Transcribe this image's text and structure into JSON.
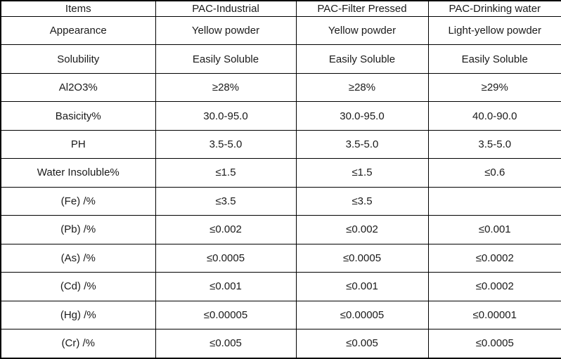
{
  "table": {
    "header": [
      "Items",
      "PAC-Industrial",
      "PAC-Filter Pressed",
      "PAC-Drinking water"
    ],
    "rows": [
      [
        "Appearance",
        "Yellow powder",
        "Yellow powder",
        "Light-yellow powder"
      ],
      [
        "Solubility",
        "Easily Soluble",
        "Easily Soluble",
        "Easily Soluble"
      ],
      [
        "Al2O3%",
        "≥28%",
        "≥28%",
        "≥29%"
      ],
      [
        "Basicity%",
        "30.0-95.0",
        "30.0-95.0",
        "40.0-90.0"
      ],
      [
        "PH",
        "3.5-5.0",
        "3.5-5.0",
        "3.5-5.0"
      ],
      [
        "Water Insoluble%",
        "≤1.5",
        "≤1.5",
        "≤0.6"
      ],
      [
        "(Fe) /%",
        "≤3.5",
        "≤3.5",
        ""
      ],
      [
        "(Pb) /%",
        "≤0.002",
        "≤0.002",
        "≤0.001"
      ],
      [
        "(As) /%",
        "≤0.0005",
        "≤0.0005",
        "≤0.0002"
      ],
      [
        "(Cd) /%",
        "≤0.001",
        "≤0.001",
        "≤0.0002"
      ],
      [
        "(Hg) /%",
        "≤0.00005",
        "≤0.00005",
        "≤0.00001"
      ],
      [
        "(Cr) /%",
        "≤0.005",
        "≤0.005",
        "≤0.0005"
      ]
    ],
    "colors": {
      "border": "#000000",
      "text": "#1a1a1a",
      "background": "#ffffff"
    }
  }
}
